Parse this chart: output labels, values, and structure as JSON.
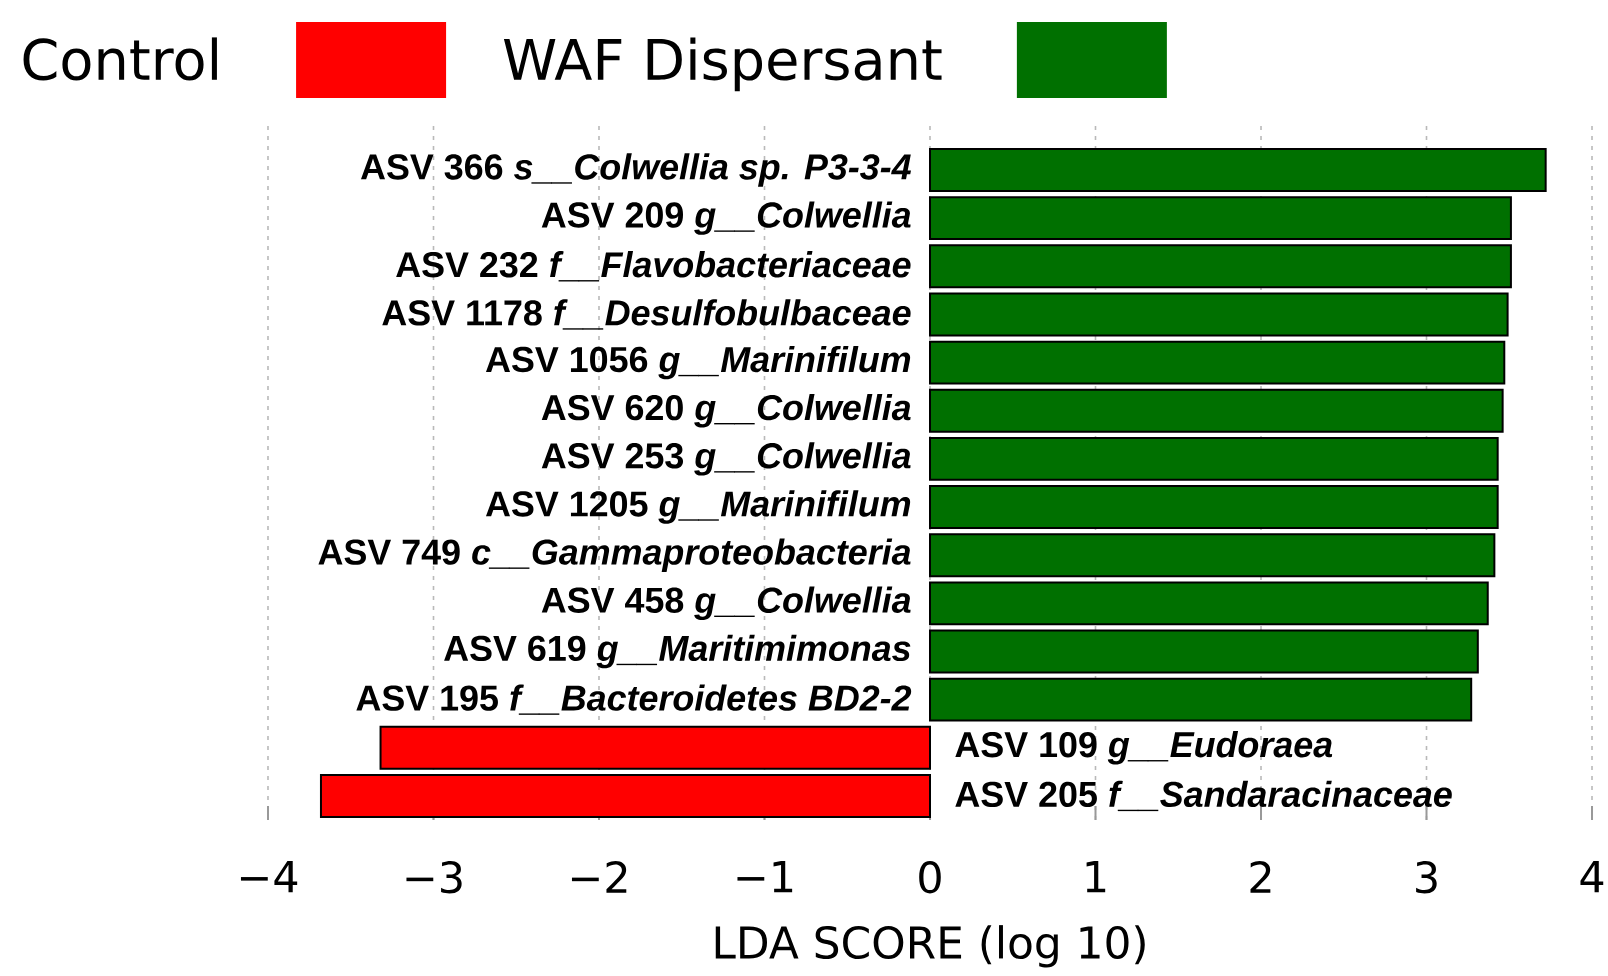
{
  "chart_data": {
    "type": "bar",
    "orientation": "horizontal",
    "categories": [
      "ASV 366 *s__Colwellia sp. P3-3-4*",
      "ASV 209 *g__Colwellia*",
      "ASV 232 *f__Flavobacteriaceae*",
      "ASV 1178 *f__Desulfobulbaceae*",
      "ASV 1056 *g__Marinifilum*",
      "ASV 620 *g__Colwellia*",
      "ASV 253 *g__Colwellia*",
      "ASV 1205 *g__Marinifilum*",
      "ASV 749 *c__Gammaproteobacteria*",
      "ASV 458 *g__Colwellia*",
      "ASV 619 *g__Maritimimonas*",
      "ASV 195 *f__Bacteroidetes BD2-2*",
      "ASV 109 *g__Eudoraea*",
      "ASV 205 *f__Sandaracinaceae*"
    ],
    "series": [
      {
        "name": "Control",
        "color": "#ff0000",
        "values": [
          null,
          null,
          null,
          null,
          null,
          null,
          null,
          null,
          null,
          null,
          null,
          null,
          -3.32,
          -3.68
        ]
      },
      {
        "name": "WAF Dispersant",
        "color": "#007000",
        "values": [
          3.72,
          3.51,
          3.51,
          3.49,
          3.47,
          3.46,
          3.43,
          3.43,
          3.41,
          3.37,
          3.31,
          3.27,
          null,
          null
        ]
      }
    ],
    "xlabel": "LDA SCORE (log 10)",
    "xlim": [
      -4,
      4
    ],
    "xticks": [
      {
        "value": -4,
        "label": "−4"
      },
      {
        "value": -3,
        "label": "−3"
      },
      {
        "value": -2,
        "label": "−2"
      },
      {
        "value": -1,
        "label": "−1"
      },
      0,
      1,
      2,
      3,
      4
    ],
    "grid": "x",
    "legend": "top"
  }
}
